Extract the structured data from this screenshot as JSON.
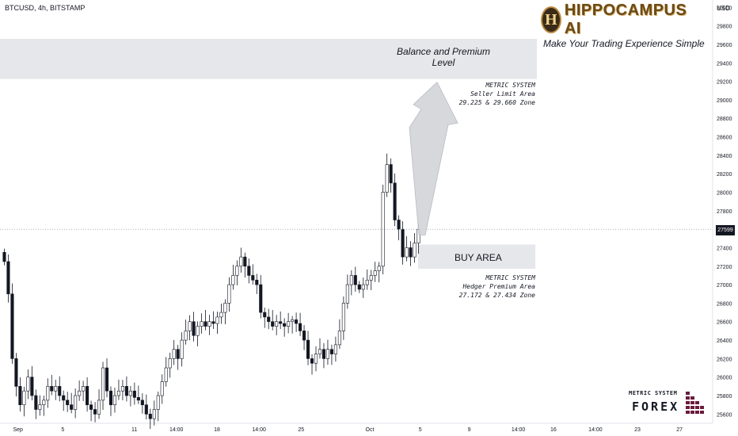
{
  "header": {
    "symbol_line": "BTCUSD, 4h, BITSTAMP",
    "currency": "USD"
  },
  "brand": {
    "mark": "H",
    "name": "HIPPOCAMPUS AI",
    "tagline": "Make Your Trading Experience Simple",
    "accent": "#b98a3e"
  },
  "annotations": {
    "premium_title": [
      "Balance and Premium",
      "Level"
    ],
    "seller_note": [
      "METRIC SYSTEM",
      "Seller Limit Area",
      "29.225 & 29.660 Zone"
    ],
    "buy_label": "BUY AREA",
    "hedger_note": [
      "METRIC SYSTEM",
      "Hedger Premium Area",
      "27.172 & 27.434 Zone"
    ]
  },
  "watermark": {
    "top": "METRIC SYSTEM",
    "main": "FOREX"
  },
  "chart_data": {
    "type": "candlestick",
    "symbol": "BTCUSD",
    "timeframe": "4h",
    "exchange": "BITSTAMP",
    "y_axis": {
      "min": 25500,
      "max": 30080,
      "ticks": [
        25600,
        25800,
        26000,
        26200,
        26400,
        26600,
        26800,
        27000,
        27200,
        27400,
        27600,
        27800,
        28000,
        28200,
        28400,
        28600,
        28800,
        29000,
        29200,
        29400,
        29600,
        29800,
        30000
      ]
    },
    "x_ticks": [
      "Sep",
      "5",
      "11",
      "14:00",
      "18",
      "14:00",
      "25",
      "Oct",
      "5",
      "9",
      "14:00",
      "16",
      "14:00",
      "23",
      "27"
    ],
    "last_price": 27599,
    "zones": [
      {
        "name": "premium",
        "low": 29225,
        "high": 29660
      },
      {
        "name": "buy",
        "low": 27172,
        "high": 27434
      }
    ],
    "closes": [
      27250,
      26900,
      26200,
      25900,
      25700,
      25850,
      26000,
      25800,
      25650,
      25700,
      25750,
      25900,
      25850,
      25900,
      25800,
      25750,
      25700,
      25650,
      25800,
      25850,
      25900,
      25700,
      25650,
      25600,
      25750,
      26100,
      25850,
      25700,
      25800,
      25850,
      25900,
      25800,
      25850,
      25780,
      25750,
      25700,
      25600,
      25550,
      25650,
      25800,
      25950,
      26100,
      26200,
      26300,
      26200,
      26400,
      26500,
      26600,
      26450,
      26550,
      26600,
      26550,
      26600,
      26580,
      26650,
      26700,
      26800,
      27000,
      27100,
      27200,
      27300,
      27200,
      27100,
      27050,
      27000,
      26700,
      26650,
      26600,
      26550,
      26600,
      26580,
      26550,
      26600,
      26620,
      26580,
      26500,
      26400,
      26200,
      26150,
      26250,
      26300,
      26200,
      26300,
      26250,
      26350,
      26500,
      26800,
      27000,
      27100,
      27000,
      26950,
      27000,
      27050,
      27100,
      27150,
      27200,
      28000,
      28300,
      28100,
      27700,
      27600,
      27300,
      27400,
      27300,
      27450,
      27600
    ]
  }
}
